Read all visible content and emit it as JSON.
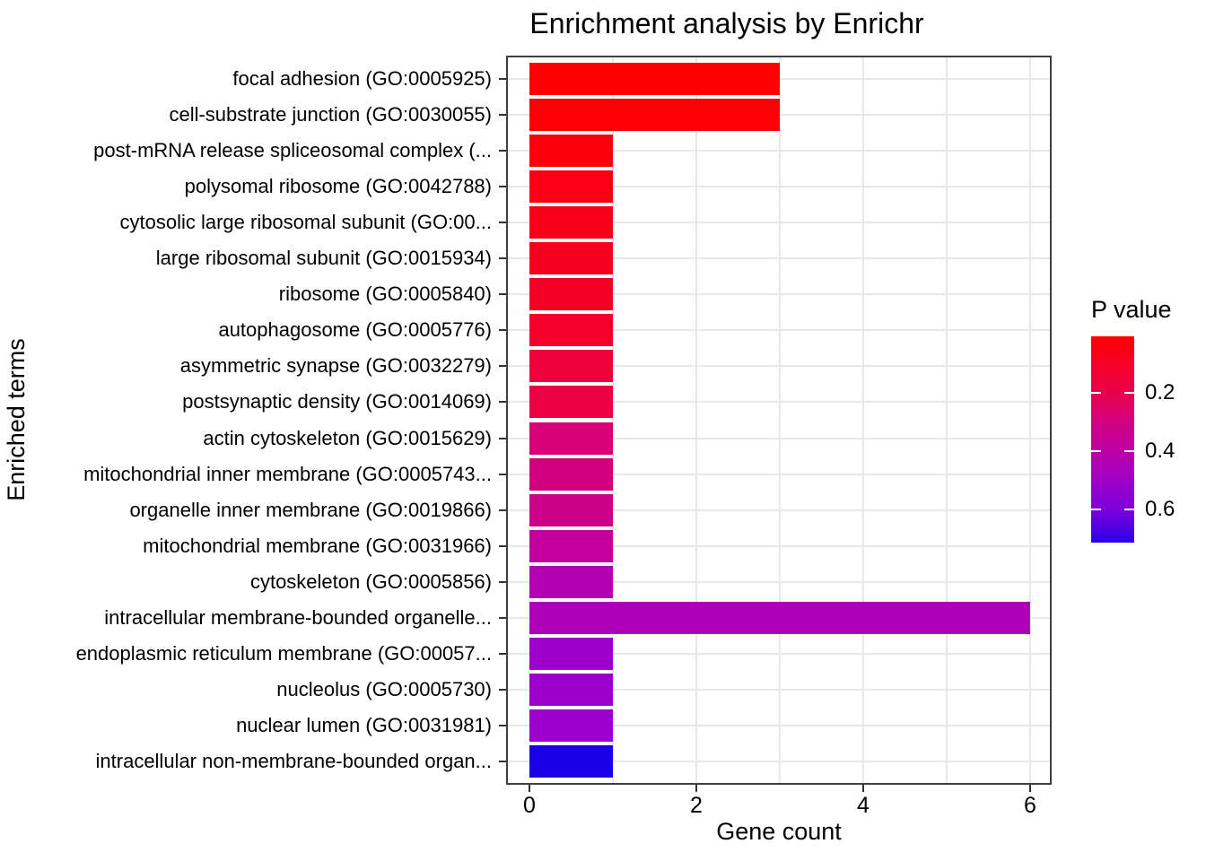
{
  "chart_data": {
    "type": "bar",
    "orientation": "horizontal",
    "title": "Enrichment analysis by Enrichr",
    "xlabel": "Gene count",
    "ylabel": "Enriched terms",
    "x_ticks": [
      0,
      2,
      4,
      6
    ],
    "xlim": [
      0,
      6.26
    ],
    "grid": "light gray; vertical lines at every integer gene count, horizontal lines at category centers",
    "legend_position": "right",
    "categories": [
      "focal adhesion (GO:0005925)",
      "cell-substrate junction (GO:0030055)",
      "post-mRNA release spliceosomal complex (...",
      "polysomal ribosome (GO:0042788)",
      "cytosolic large ribosomal subunit (GO:00...",
      "large ribosomal subunit (GO:0015934)",
      "ribosome (GO:0005840)",
      "autophagosome (GO:0005776)",
      "asymmetric synapse (GO:0032279)",
      "postsynaptic density (GO:0014069)",
      "actin cytoskeleton (GO:0015629)",
      "mitochondrial inner membrane (GO:0005743...",
      "organelle inner membrane (GO:0019866)",
      "mitochondrial membrane (GO:0031966)",
      "cytoskeleton (GO:0005856)",
      "intracellular membrane-bounded organelle...",
      "endoplasmic reticulum membrane (GO:00057...",
      "nucleolus (GO:0005730)",
      "nuclear lumen (GO:0031981)",
      "intracellular non-membrane-bounded organ..."
    ],
    "values": [
      3,
      3,
      1,
      1,
      1,
      1,
      1,
      1,
      1,
      1,
      1,
      1,
      1,
      1,
      1,
      6,
      1,
      1,
      1,
      1
    ],
    "bar_colors": [
      "#FF0000",
      "#FE0004",
      "#FC000C",
      "#FA0013",
      "#F80019",
      "#F6001F",
      "#F40025",
      "#F2002B",
      "#EE003A",
      "#EA0043",
      "#D80075",
      "#D3007E",
      "#CD0088",
      "#C1009E",
      "#B200B3",
      "#AE00B8",
      "#9D00CA",
      "#9C00CB",
      "#9B00CC",
      "#1A00E6"
    ],
    "colorbar": {
      "title": "P value",
      "tick_labels": [
        "0.2",
        "0.4",
        "0.6"
      ],
      "tick_values": [
        0.2,
        0.4,
        0.6
      ],
      "top_color": "#FF0000",
      "bottom_color": "#2B00EA",
      "gradient_stops": [
        {
          "pos": 0.0,
          "color": "#FF0000"
        },
        {
          "pos": 0.13,
          "color": "#F60026"
        },
        {
          "pos": 0.274,
          "color": "#E80048"
        },
        {
          "pos": 0.41,
          "color": "#D4007E"
        },
        {
          "pos": 0.557,
          "color": "#BC00A4"
        },
        {
          "pos": 0.7,
          "color": "#9F00C8"
        },
        {
          "pos": 0.84,
          "color": "#7C00DB"
        },
        {
          "pos": 1.0,
          "color": "#2B00EA"
        }
      ]
    }
  },
  "colors": {
    "panel_border": "#404040",
    "gridline": "#E8E8E8",
    "tick_mark": "#333333",
    "text": "#000000",
    "background": "#FFFFFF"
  }
}
